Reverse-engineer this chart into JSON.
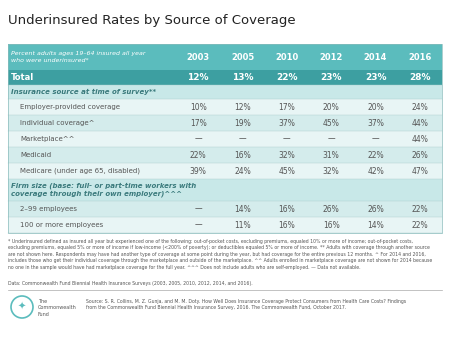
{
  "title": "Underinsured Rates by Source of Coverage",
  "subtitle": "Percent adults ages 19–64 insured all year\nwho were underinsured*",
  "years": [
    "2003",
    "2005",
    "2010",
    "2012",
    "2014",
    "2016"
  ],
  "header_bg": "#5bbcbd",
  "header_text": "#ffffff",
  "total_bg": "#3d9fa1",
  "total_text": "#ffffff",
  "section_bg": "#c8e8e8",
  "section_text": "#3a7a7c",
  "row_bg_alt1": "#e8f5f5",
  "row_bg_alt2": "#d4ecec",
  "row_text": "#555555",
  "bg_color": "#ffffff",
  "rows": [
    {
      "label": "Total",
      "indent": false,
      "section": false,
      "total": true,
      "values": [
        "12%",
        "13%",
        "22%",
        "23%",
        "23%",
        "28%"
      ]
    },
    {
      "label": "Insurance source at time of survey**",
      "indent": false,
      "section": true,
      "total": false,
      "values": [
        "",
        "",
        "",
        "",
        "",
        ""
      ]
    },
    {
      "label": "Employer-provided coverage",
      "indent": true,
      "section": false,
      "total": false,
      "values": [
        "10%",
        "12%",
        "17%",
        "20%",
        "20%",
        "24%"
      ]
    },
    {
      "label": "Individual coverage^",
      "indent": true,
      "section": false,
      "total": false,
      "values": [
        "17%",
        "19%",
        "37%",
        "45%",
        "37%",
        "44%"
      ]
    },
    {
      "label": "Marketplace^^",
      "indent": true,
      "section": false,
      "total": false,
      "values": [
        "—",
        "—",
        "—",
        "—",
        "—",
        "44%"
      ]
    },
    {
      "label": "Medicaid",
      "indent": true,
      "section": false,
      "total": false,
      "values": [
        "22%",
        "16%",
        "32%",
        "31%",
        "22%",
        "26%"
      ]
    },
    {
      "label": "Medicare (under age 65, disabled)",
      "indent": true,
      "section": false,
      "total": false,
      "values": [
        "39%",
        "24%",
        "45%",
        "32%",
        "42%",
        "47%"
      ]
    },
    {
      "label": "Firm size (base: full- or part-time workers with\ncoverage through their own employer)^^^",
      "indent": false,
      "section": true,
      "total": false,
      "values": [
        "",
        "",
        "",
        "",
        "",
        ""
      ]
    },
    {
      "label": "2–99 employees",
      "indent": true,
      "section": false,
      "total": false,
      "values": [
        "—",
        "14%",
        "16%",
        "26%",
        "26%",
        "22%"
      ]
    },
    {
      "label": "100 or more employees",
      "indent": true,
      "section": false,
      "total": false,
      "values": [
        "—",
        "11%",
        "16%",
        "16%",
        "14%",
        "22%"
      ]
    }
  ],
  "footnote_text": "* Underinsured defined as insured all year but experienced one of the following: out-of-pocket costs, excluding premiums, equaled 10% or more of income; out-of-pocket costs,\nexcluding premiums, equaled 5% or more of income if low-income (<200% of poverty); or deductibles equaled 5% or more of income. ** Adults with coverage through another source\nare not shown here. Respondents may have had another type of coverage at some point during the year, but had coverage for the entire previous 12 months. ^ For 2014 and 2016,\nincludes those who get their individual coverage through the marketplace and outside of the marketplace. ^^ Adults enrolled in marketplace coverage are not shown for 2014 because\nno one in the sample would have had marketplace coverage for the full year. ^^^ Does not include adults who are self-employed. — Data not available.",
  "data_source": "Data: Commonwealth Fund Biennial Health Insurance Surveys (2003, 2005, 2010, 2012, 2014, and 2016).",
  "source_text": "Source: S. R. Collins, M. Z. Gunja, and M. M. Doty. How Well Does Insurance Coverage Protect Consumers from Health Care Costs? Findings\nfrom the Commonwealth Fund Biennial Health Insurance Survey, 2016. The Commonwealth Fund, October 2017.",
  "org_name": "The\nCommonwealth\nFund"
}
